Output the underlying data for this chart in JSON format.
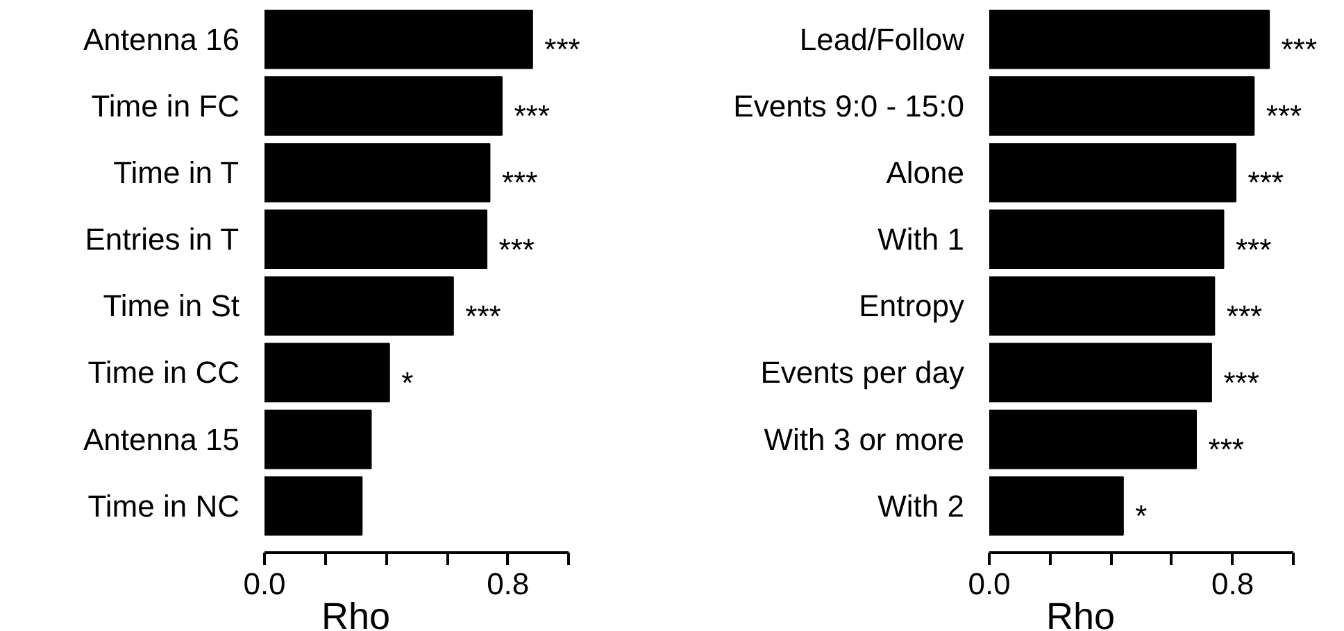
{
  "chart_data": [
    {
      "type": "bar",
      "orientation": "horizontal",
      "xlabel": "Rho",
      "categories": [
        "Antenna 16",
        "Time in FC",
        "Time in T",
        "Entries in T",
        "Time in St",
        "Time in CC",
        "Antenna 15",
        "Time in NC"
      ],
      "values": [
        0.88,
        0.78,
        0.74,
        0.73,
        0.62,
        0.41,
        0.35,
        0.32
      ],
      "value_labels": [
        "***",
        "***",
        "***",
        "***",
        "***",
        "*",
        null,
        null
      ],
      "color": "#000000",
      "xlim": [
        0,
        1.0
      ],
      "xticks": [
        {
          "value": 0,
          "label": "0.0"
        },
        {
          "value": 0.2,
          "label": null
        },
        {
          "value": 0.4,
          "label": null
        },
        {
          "value": 0.6,
          "label": null
        },
        0.8,
        {
          "value": 1.0,
          "label": null
        }
      ],
      "grid": false
    },
    {
      "type": "bar",
      "orientation": "horizontal",
      "xlabel": "Rho",
      "categories": [
        "Lead/Follow",
        "Events 9:0 - 15:0",
        "Alone",
        "With 1",
        "Entropy",
        "Events per day",
        "With 3 or more",
        "With 2"
      ],
      "values": [
        0.92,
        0.87,
        0.81,
        0.77,
        0.74,
        0.73,
        0.68,
        0.44
      ],
      "value_labels": [
        "***",
        "***",
        "***",
        "***",
        "***",
        "***",
        "***",
        "*"
      ],
      "color": "#000000",
      "xlim": [
        0,
        1.0
      ],
      "xticks": [
        {
          "value": 0,
          "label": "0.0"
        },
        {
          "value": 0.2,
          "label": null
        },
        {
          "value": 0.4,
          "label": null
        },
        {
          "value": 0.6,
          "label": null
        },
        0.8,
        {
          "value": 1.0,
          "label": null
        }
      ],
      "grid": false
    }
  ]
}
